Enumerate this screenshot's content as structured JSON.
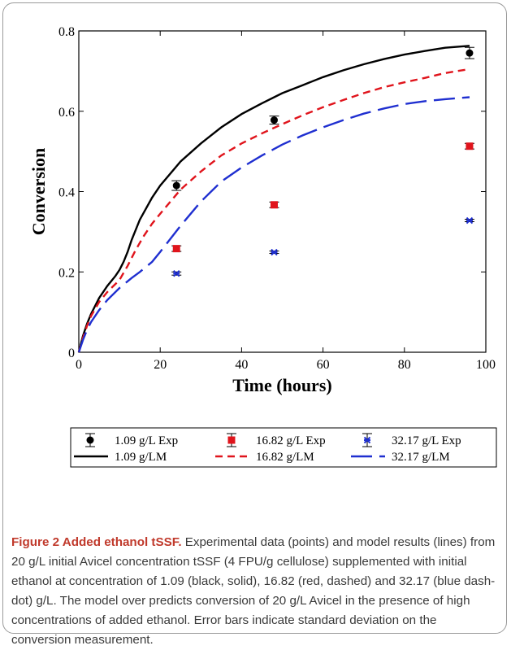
{
  "chart_data": {
    "type": "line",
    "xlabel": "Time (hours)",
    "ylabel": "Conversion",
    "xlim": [
      0,
      100
    ],
    "ylim": [
      0,
      0.8
    ],
    "xticks": [
      0,
      20,
      40,
      60,
      80,
      100
    ],
    "yticks": [
      0,
      0.2,
      0.4,
      0.6,
      0.8
    ],
    "ytick_labels": [
      "0",
      "0.2",
      "0.4",
      "0.6",
      "0.8"
    ],
    "grid": false,
    "legend_position": "below",
    "experimental": [
      {
        "name": "1.09 g/L Exp",
        "color": "#000000",
        "marker": "circle",
        "x": [
          24,
          48,
          96
        ],
        "y": [
          0.415,
          0.578,
          0.745
        ],
        "err": [
          0.012,
          0.01,
          0.014
        ]
      },
      {
        "name": "16.82 g/L Exp",
        "color": "#e0141c",
        "marker": "square",
        "x": [
          24,
          48,
          96
        ],
        "y": [
          0.258,
          0.367,
          0.513
        ],
        "err": [
          0.007,
          0.007,
          0.007
        ]
      },
      {
        "name": "32.17 g/L Exp",
        "color": "#1f2fd0",
        "marker": "star",
        "x": [
          24,
          48,
          96
        ],
        "y": [
          0.196,
          0.249,
          0.328
        ],
        "err": [
          0.004,
          0.003,
          0.003
        ]
      }
    ],
    "model": [
      {
        "name": "1.09 g/L M",
        "color": "#000000",
        "dash": "solid",
        "x": [
          0,
          1,
          2,
          3,
          5,
          7,
          9,
          10,
          11,
          12,
          13,
          15,
          18,
          20,
          25,
          30,
          35,
          40,
          45,
          50,
          55,
          60,
          65,
          70,
          75,
          80,
          85,
          90,
          96
        ],
        "y": [
          0,
          0.04,
          0.07,
          0.095,
          0.135,
          0.165,
          0.19,
          0.205,
          0.225,
          0.25,
          0.28,
          0.33,
          0.385,
          0.415,
          0.475,
          0.52,
          0.56,
          0.593,
          0.62,
          0.645,
          0.665,
          0.685,
          0.702,
          0.717,
          0.73,
          0.741,
          0.75,
          0.758,
          0.763
        ]
      },
      {
        "name": "16.82 g/L M",
        "color": "#e0141c",
        "dash": "dashed",
        "x": [
          0,
          1,
          2,
          3,
          5,
          7,
          9,
          10,
          12,
          14,
          16,
          18,
          20,
          25,
          30,
          35,
          40,
          45,
          50,
          55,
          60,
          65,
          70,
          75,
          80,
          85,
          90,
          96
        ],
        "y": [
          0,
          0.035,
          0.065,
          0.09,
          0.125,
          0.15,
          0.17,
          0.18,
          0.215,
          0.255,
          0.29,
          0.32,
          0.345,
          0.405,
          0.45,
          0.49,
          0.52,
          0.545,
          0.568,
          0.59,
          0.61,
          0.628,
          0.645,
          0.66,
          0.672,
          0.683,
          0.695,
          0.705
        ]
      },
      {
        "name": "32.17 g/L M",
        "color": "#1f2fd0",
        "dash": "dashdot",
        "x": [
          0,
          1,
          2,
          3,
          5,
          7,
          10,
          13,
          15,
          18,
          20,
          25,
          30,
          35,
          40,
          45,
          50,
          55,
          60,
          65,
          70,
          75,
          80,
          85,
          90,
          96
        ],
        "y": [
          0,
          0.03,
          0.055,
          0.075,
          0.105,
          0.13,
          0.16,
          0.185,
          0.2,
          0.225,
          0.25,
          0.315,
          0.375,
          0.425,
          0.46,
          0.49,
          0.517,
          0.54,
          0.56,
          0.578,
          0.594,
          0.607,
          0.618,
          0.625,
          0.63,
          0.635
        ]
      }
    ]
  },
  "legend": {
    "items": [
      {
        "label": "1.09 g/L Exp",
        "series": "exp",
        "idx": 0
      },
      {
        "label": "16.82 g/L Exp",
        "series": "exp",
        "idx": 1
      },
      {
        "label": "32.17 g/L Exp",
        "series": "exp",
        "idx": 2
      },
      {
        "label": "1.09 g/LM",
        "series": "model",
        "idx": 0
      },
      {
        "label": "16.82 g/LM",
        "series": "model",
        "idx": 1
      },
      {
        "label": "32.17 g/LM",
        "series": "model",
        "idx": 2
      }
    ]
  },
  "caption": {
    "title": "Figure 2 Added ethanol tSSF.",
    "body": " Experimental data (points) and model results (lines) from 20 g/L initial Avicel concentration tSSF (4 FPU/g cellulose) supplemented with initial ethanol at concentration of 1.09 (black, solid), 16.82 (red, dashed) and 32.17 (blue dash-dot) g/L. The model over predicts conversion of 20 g/L Avicel in the presence of high concentrations of added ethanol. Error bars indicate standard deviation on the conversion measurement."
  }
}
